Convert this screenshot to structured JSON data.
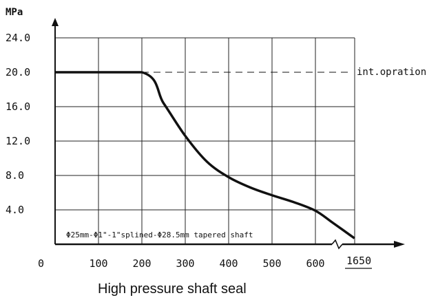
{
  "chart_data": {
    "type": "line",
    "title": "High pressure shaft seal",
    "ylabel": "MPa",
    "xlabel": "",
    "xlim": [
      0,
      700
    ],
    "ylim": [
      0,
      24
    ],
    "x_tick_labels": [
      "0",
      "100",
      "200",
      "300",
      "400",
      "500",
      "600"
    ],
    "x_break_label": "1650",
    "y_tick_labels": [
      "4.0",
      "8.0",
      "12.0",
      "16.0",
      "20.0",
      "24.0"
    ],
    "grid": true,
    "series": [
      {
        "values": [
          {
            "x": 0,
            "y": 20.0
          },
          {
            "x": 200,
            "y": 20.0
          },
          {
            "x": 250,
            "y": 16.4
          },
          {
            "x": 300,
            "y": 12.6
          },
          {
            "x": 350,
            "y": 9.6
          },
          {
            "x": 400,
            "y": 7.8
          },
          {
            "x": 450,
            "y": 6.6
          },
          {
            "x": 500,
            "y": 5.7
          },
          {
            "x": 550,
            "y": 4.9
          },
          {
            "x": 600,
            "y": 3.9
          },
          {
            "x": 640,
            "y": 2.5
          },
          {
            "x": 690,
            "y": 0.7
          }
        ]
      }
    ],
    "reference_line": {
      "y": 20.0,
      "label": "int.opration",
      "style": "dashed"
    },
    "annotation": "Φ25mm-Φ1\"-1\"splined-Φ28.5mm tapered shaft"
  }
}
